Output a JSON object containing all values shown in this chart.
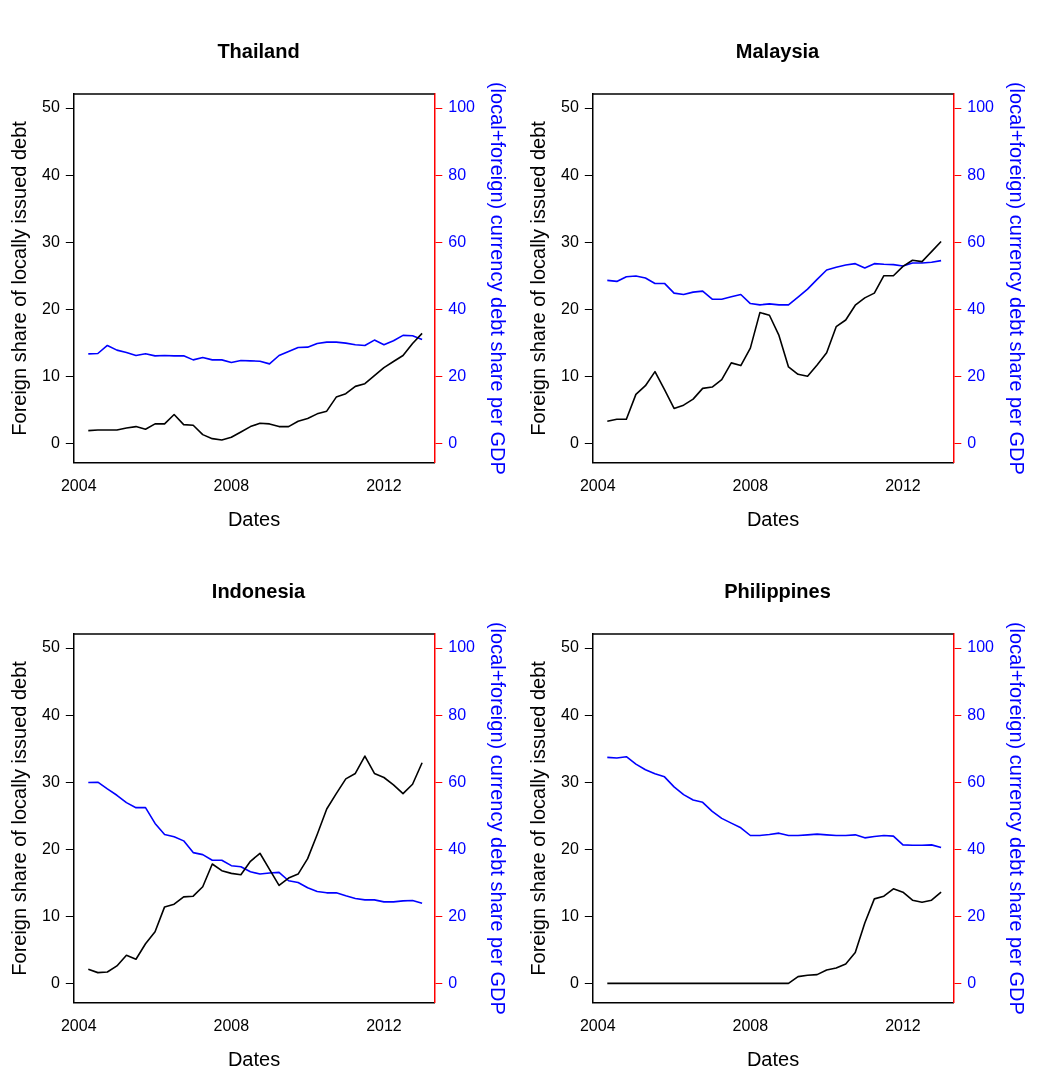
{
  "chart_data": [
    {
      "type": "line",
      "title": "Thailand",
      "xlabel": "Dates",
      "ylabel": "Foreign share of locally issued debt",
      "y2label": "(local+foreign) currency debt share per GDP",
      "x": [
        2004.25,
        2004.5,
        2004.75,
        2005,
        2005.25,
        2005.5,
        2005.75,
        2006,
        2006.25,
        2006.5,
        2006.75,
        2007,
        2007.25,
        2007.5,
        2007.75,
        2008,
        2008.25,
        2008.5,
        2008.75,
        2009,
        2009.25,
        2009.5,
        2009.75,
        2010,
        2010.25,
        2010.5,
        2010.75,
        2011,
        2011.25,
        2011.5,
        2011.75,
        2012,
        2012.25,
        2012.5,
        2012.75,
        2013
      ],
      "xlim": [
        2003.87,
        2013.32
      ],
      "xticks": [
        2004,
        2008,
        2012
      ],
      "ylim": [
        -2.9,
        52.1
      ],
      "yticks": [
        0,
        10,
        20,
        30,
        40,
        50
      ],
      "y2lim": [
        -5.8,
        104.2
      ],
      "y2ticks": [
        0,
        20,
        40,
        60,
        80,
        100
      ],
      "series": [
        {
          "color": "#000000",
          "values": [
            1.9,
            2.0,
            2.0,
            2.0,
            2.3,
            2.5,
            2.1,
            2.9,
            2.9,
            4.3,
            2.8,
            2.7,
            1.3,
            0.7,
            0.5,
            0.9,
            1.7,
            2.5,
            3.0,
            2.9,
            2.5,
            2.5,
            3.3,
            3.7,
            4.4,
            4.8,
            6.9,
            7.4,
            8.5,
            8.9,
            10.1,
            11.3,
            12.2,
            13.1,
            14.9,
            16.4
          ]
        },
        {
          "color": "#0000ff",
          "axis": "y2",
          "values": [
            26.7,
            26.8,
            29.2,
            27.8,
            27.1,
            26.2,
            26.7,
            26.1,
            26.2,
            26.1,
            26.1,
            24.9,
            25.6,
            24.9,
            24.9,
            24.1,
            24.7,
            24.6,
            24.5,
            23.7,
            26.2,
            27.4,
            28.6,
            28.7,
            29.8,
            30.2,
            30.2,
            29.9,
            29.4,
            29.2,
            30.8,
            29.4,
            30.6,
            32.2,
            32.1,
            31.0
          ]
        }
      ]
    },
    {
      "type": "line",
      "title": "Malaysia",
      "xlabel": "Dates",
      "ylabel": "Foreign share of locally issued debt",
      "y2label": "(local+foreign) currency debt share per GDP",
      "x": [
        2004.25,
        2004.5,
        2004.75,
        2005,
        2005.25,
        2005.5,
        2005.75,
        2006,
        2006.25,
        2006.5,
        2006.75,
        2007,
        2007.25,
        2007.5,
        2007.75,
        2008,
        2008.25,
        2008.5,
        2008.75,
        2009,
        2009.25,
        2009.5,
        2009.75,
        2010,
        2010.25,
        2010.5,
        2010.75,
        2011,
        2011.25,
        2011.5,
        2011.75,
        2012,
        2012.25,
        2012.5,
        2012.75,
        2013
      ],
      "xlim": [
        2003.87,
        2013.32
      ],
      "xticks": [
        2004,
        2008,
        2012
      ],
      "ylim": [
        -2.9,
        52.1
      ],
      "yticks": [
        0,
        10,
        20,
        30,
        40,
        50
      ],
      "y2lim": [
        -5.8,
        104.2
      ],
      "y2ticks": [
        0,
        20,
        40,
        60,
        80,
        100
      ],
      "series": [
        {
          "color": "#000000",
          "values": [
            3.3,
            3.6,
            3.6,
            7.3,
            8.6,
            10.7,
            8.0,
            5.2,
            5.7,
            6.6,
            8.2,
            8.4,
            9.5,
            12.0,
            11.6,
            14.2,
            19.5,
            19.1,
            16.1,
            11.4,
            10.3,
            10.0,
            11.7,
            13.5,
            17.4,
            18.4,
            20.6,
            21.7,
            22.4,
            25.0,
            25.0,
            26.4,
            27.3,
            27.1,
            28.6,
            30.1
          ]
        },
        {
          "color": "#0000ff",
          "axis": "y2",
          "values": [
            48.6,
            48.3,
            49.7,
            49.9,
            49.3,
            47.7,
            47.7,
            44.8,
            44.4,
            45.1,
            45.4,
            43.0,
            43.0,
            43.7,
            44.4,
            41.7,
            41.3,
            41.6,
            41.3,
            41.3,
            43.6,
            46.0,
            48.9,
            51.7,
            52.5,
            53.2,
            53.6,
            52.3,
            53.6,
            53.4,
            53.3,
            52.9,
            53.8,
            53.8,
            54.0,
            54.5
          ]
        }
      ]
    },
    {
      "type": "line",
      "title": "Indonesia",
      "xlabel": "Dates",
      "ylabel": "Foreign share of locally issued debt",
      "y2label": "(local+foreign) currency debt share per GDP",
      "x": [
        2004.25,
        2004.5,
        2004.75,
        2005,
        2005.25,
        2005.5,
        2005.75,
        2006,
        2006.25,
        2006.5,
        2006.75,
        2007,
        2007.25,
        2007.5,
        2007.75,
        2008,
        2008.25,
        2008.5,
        2008.75,
        2009,
        2009.25,
        2009.5,
        2009.75,
        2010,
        2010.25,
        2010.5,
        2010.75,
        2011,
        2011.25,
        2011.5,
        2011.75,
        2012,
        2012.25,
        2012.5,
        2012.75,
        2013
      ],
      "xlim": [
        2003.87,
        2013.32
      ],
      "xticks": [
        2004,
        2008,
        2012
      ],
      "ylim": [
        -2.9,
        52.1
      ],
      "yticks": [
        0,
        10,
        20,
        30,
        40,
        50
      ],
      "y2lim": [
        -5.8,
        104.2
      ],
      "y2ticks": [
        0,
        20,
        40,
        60,
        80,
        100
      ],
      "series": [
        {
          "color": "#000000",
          "values": [
            2.1,
            1.6,
            1.7,
            2.6,
            4.2,
            3.6,
            5.9,
            7.7,
            11.4,
            11.8,
            12.9,
            13.0,
            14.4,
            17.8,
            16.8,
            16.4,
            16.2,
            18.2,
            19.4,
            17.0,
            14.6,
            15.7,
            16.3,
            18.6,
            22.2,
            26.0,
            28.3,
            30.5,
            31.3,
            33.9,
            31.3,
            30.7,
            29.6,
            28.3,
            29.7,
            32.9
          ]
        },
        {
          "color": "#0000ff",
          "axis": "y2",
          "values": [
            59.9,
            60.0,
            58.0,
            56.1,
            53.9,
            52.4,
            52.4,
            47.7,
            44.4,
            43.7,
            42.5,
            39.0,
            38.4,
            36.7,
            36.7,
            35.1,
            34.8,
            33.3,
            32.6,
            32.9,
            33.1,
            30.6,
            30.1,
            28.5,
            27.4,
            27.0,
            27.0,
            26.1,
            25.3,
            24.9,
            24.9,
            24.3,
            24.3,
            24.6,
            24.7,
            23.9
          ]
        }
      ]
    },
    {
      "type": "line",
      "title": "Philippines",
      "xlabel": "Dates",
      "ylabel": "Foreign share of locally issued debt",
      "y2label": "(local+foreign) currency debt share per GDP",
      "x": [
        2004.25,
        2004.5,
        2004.75,
        2005,
        2005.25,
        2005.5,
        2005.75,
        2006,
        2006.25,
        2006.5,
        2006.75,
        2007,
        2007.25,
        2007.5,
        2007.75,
        2008,
        2008.25,
        2008.5,
        2008.75,
        2009,
        2009.25,
        2009.5,
        2009.75,
        2010,
        2010.25,
        2010.5,
        2010.75,
        2011,
        2011.25,
        2011.5,
        2011.75,
        2012,
        2012.25,
        2012.5,
        2012.75,
        2013
      ],
      "xlim": [
        2003.87,
        2013.32
      ],
      "xticks": [
        2004,
        2008,
        2012
      ],
      "ylim": [
        -2.9,
        52.1
      ],
      "yticks": [
        0,
        10,
        20,
        30,
        40,
        50
      ],
      "y2lim": [
        -5.8,
        104.2
      ],
      "y2ticks": [
        0,
        20,
        40,
        60,
        80,
        100
      ],
      "series": [
        {
          "color": "#000000",
          "values": [
            0,
            0,
            0,
            0,
            0,
            0,
            0,
            0,
            0,
            0,
            0,
            0,
            0,
            0,
            0,
            0,
            0,
            0,
            0,
            0,
            1.0,
            1.2,
            1.3,
            2.0,
            2.3,
            2.9,
            4.6,
            9.0,
            12.6,
            13.0,
            14.1,
            13.6,
            12.4,
            12.1,
            12.4,
            13.6
          ]
        },
        {
          "color": "#0000ff",
          "axis": "y2",
          "values": [
            67.4,
            67.2,
            67.6,
            65.4,
            63.7,
            62.5,
            61.6,
            58.6,
            56.3,
            54.7,
            54.0,
            51.3,
            49.2,
            47.8,
            46.4,
            44.1,
            44.1,
            44.4,
            44.8,
            44.1,
            44.1,
            44.3,
            44.5,
            44.3,
            44.1,
            44.1,
            44.3,
            43.4,
            43.8,
            44.1,
            43.9,
            41.3,
            41.2,
            41.2,
            41.3,
            40.5
          ]
        }
      ]
    }
  ]
}
